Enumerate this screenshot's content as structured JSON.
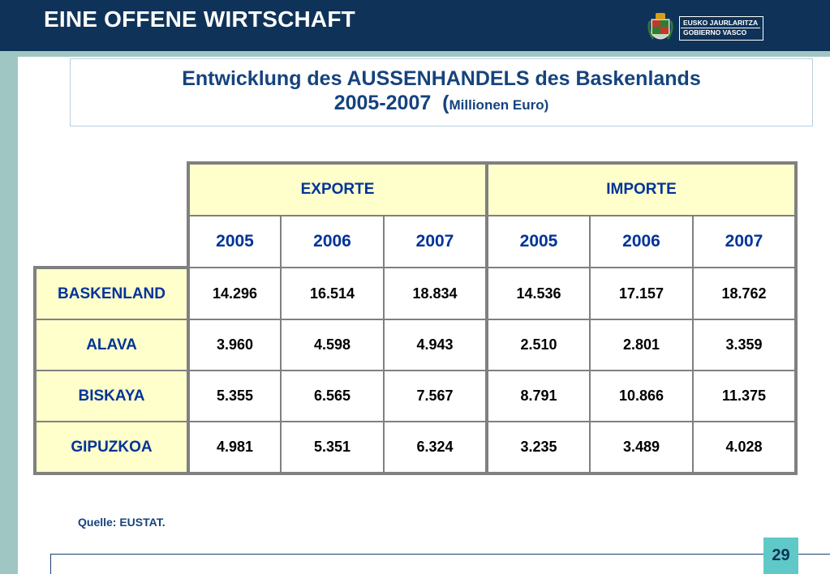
{
  "header": {
    "title": "EINE OFFENE WIRTSCHAFT",
    "logo_line1": "EUSKO JAURLARITZA",
    "logo_line2": "GOBIERNO VASCO"
  },
  "slide_title": {
    "line1": "Entwicklung des AUSSENHANDELS des Baskenlands",
    "line2_years": "2005-2007",
    "line2_open": "(",
    "line2_unit": "Millionen Euro)"
  },
  "table": {
    "groups": [
      "EXPORTE",
      "IMPORTE"
    ],
    "years": [
      "2005",
      "2006",
      "2007",
      "2005",
      "2006",
      "2007"
    ],
    "rows": [
      {
        "label": "BASKENLAND",
        "values": [
          "14.296",
          "16.514",
          "18.834",
          "14.536",
          "17.157",
          "18.762"
        ]
      },
      {
        "label": "ALAVA",
        "values": [
          "3.960",
          "4.598",
          "4.943",
          "2.510",
          "2.801",
          "3.359"
        ]
      },
      {
        "label": "BISKAYA",
        "values": [
          "5.355",
          "6.565",
          "7.567",
          "8.791",
          "10.866",
          "11.375"
        ]
      },
      {
        "label": "GIPUZKOA",
        "values": [
          "4.981",
          "5.351",
          "6.324",
          "3.235",
          "3.489",
          "4.028"
        ]
      }
    ]
  },
  "source": "Quelle: EUSTAT.",
  "page_number": "29",
  "colors": {
    "header_bg": "#0f3358",
    "stripe": "#9fc6c2",
    "title_text": "#15437e",
    "header_cell_bg": "#ffffcc",
    "page_badge": "#5fc9c7"
  }
}
